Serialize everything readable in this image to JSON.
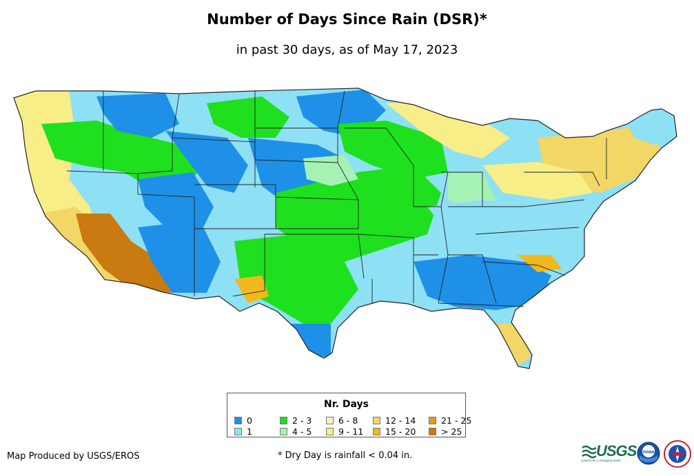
{
  "title": "Number of Days Since Rain (DSR)*",
  "subtitle": "in past 30 days, as of May 17, 2023",
  "legend": {
    "title": "Nr. Days",
    "items": [
      {
        "label": "0",
        "color": "#1e90e8"
      },
      {
        "label": "1",
        "color": "#8ee0f5"
      },
      {
        "label": "2 - 3",
        "color": "#1ee01e"
      },
      {
        "label": "4 - 5",
        "color": "#a6f2b4"
      },
      {
        "label": "6 - 8",
        "color": "#f7f4c4"
      },
      {
        "label": "9 - 11",
        "color": "#f7ee88"
      },
      {
        "label": "12 - 14",
        "color": "#f2d766"
      },
      {
        "label": "15 - 20",
        "color": "#f2b81c"
      },
      {
        "label": "21 - 25",
        "color": "#e39a1c"
      },
      {
        "label": "> 25",
        "color": "#c97a10"
      }
    ]
  },
  "footer": {
    "credit": "Map Produced by USGS/EROS",
    "note": "* Dry Day is rainfall < 0.04 in."
  },
  "logos": {
    "usgs": "USGS",
    "usgs_tagline": "science for a changing world",
    "noaa": "noaa"
  }
}
